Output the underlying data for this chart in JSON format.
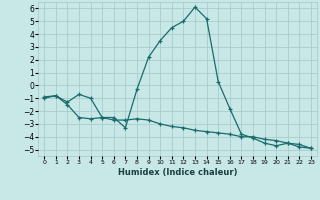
{
  "xlabel": "Humidex (Indice chaleur)",
  "bg_color": "#c8e8e8",
  "grid_color": "#aacccc",
  "line_color": "#1a6b6b",
  "xlim": [
    -0.5,
    23.5
  ],
  "ylim": [
    -5.5,
    6.5
  ],
  "yticks": [
    -5,
    -4,
    -3,
    -2,
    -1,
    0,
    1,
    2,
    3,
    4,
    5,
    6
  ],
  "xticks": [
    0,
    1,
    2,
    3,
    4,
    5,
    6,
    7,
    8,
    9,
    10,
    11,
    12,
    13,
    14,
    15,
    16,
    17,
    18,
    19,
    20,
    21,
    22,
    23
  ],
  "xtick_labels": [
    "0",
    "1",
    "2",
    "3",
    "4",
    "5",
    "6",
    "7",
    "8",
    "9",
    "10",
    "11",
    "12",
    "13",
    "14",
    "15",
    "16",
    "17",
    "18",
    "19",
    "20",
    "21",
    "22",
    "23"
  ],
  "line1_x": [
    0,
    1,
    2,
    3,
    4,
    5,
    6,
    7,
    8,
    9,
    10,
    11,
    12,
    13,
    14,
    15,
    16,
    17,
    18,
    19,
    20,
    21,
    22,
    23
  ],
  "line1_y": [
    -1.0,
    -0.8,
    -1.3,
    -0.7,
    -1.0,
    -2.5,
    -2.5,
    -3.3,
    -0.3,
    2.2,
    3.5,
    4.5,
    5.0,
    6.1,
    5.2,
    0.3,
    -1.8,
    -3.8,
    -4.1,
    -4.5,
    -4.7,
    -4.5,
    -4.8,
    -4.9
  ],
  "line2_x": [
    0,
    1,
    2,
    3,
    4,
    5,
    6,
    7,
    8,
    9,
    10,
    11,
    12,
    13,
    14,
    15,
    16,
    17,
    18,
    19,
    20,
    21,
    22,
    23
  ],
  "line2_y": [
    -0.9,
    -0.8,
    -1.5,
    -2.5,
    -2.6,
    -2.5,
    -2.7,
    -2.7,
    -2.6,
    -2.7,
    -3.0,
    -3.2,
    -3.3,
    -3.5,
    -3.6,
    -3.7,
    -3.8,
    -4.0,
    -4.0,
    -4.2,
    -4.3,
    -4.5,
    -4.6,
    -4.9
  ]
}
